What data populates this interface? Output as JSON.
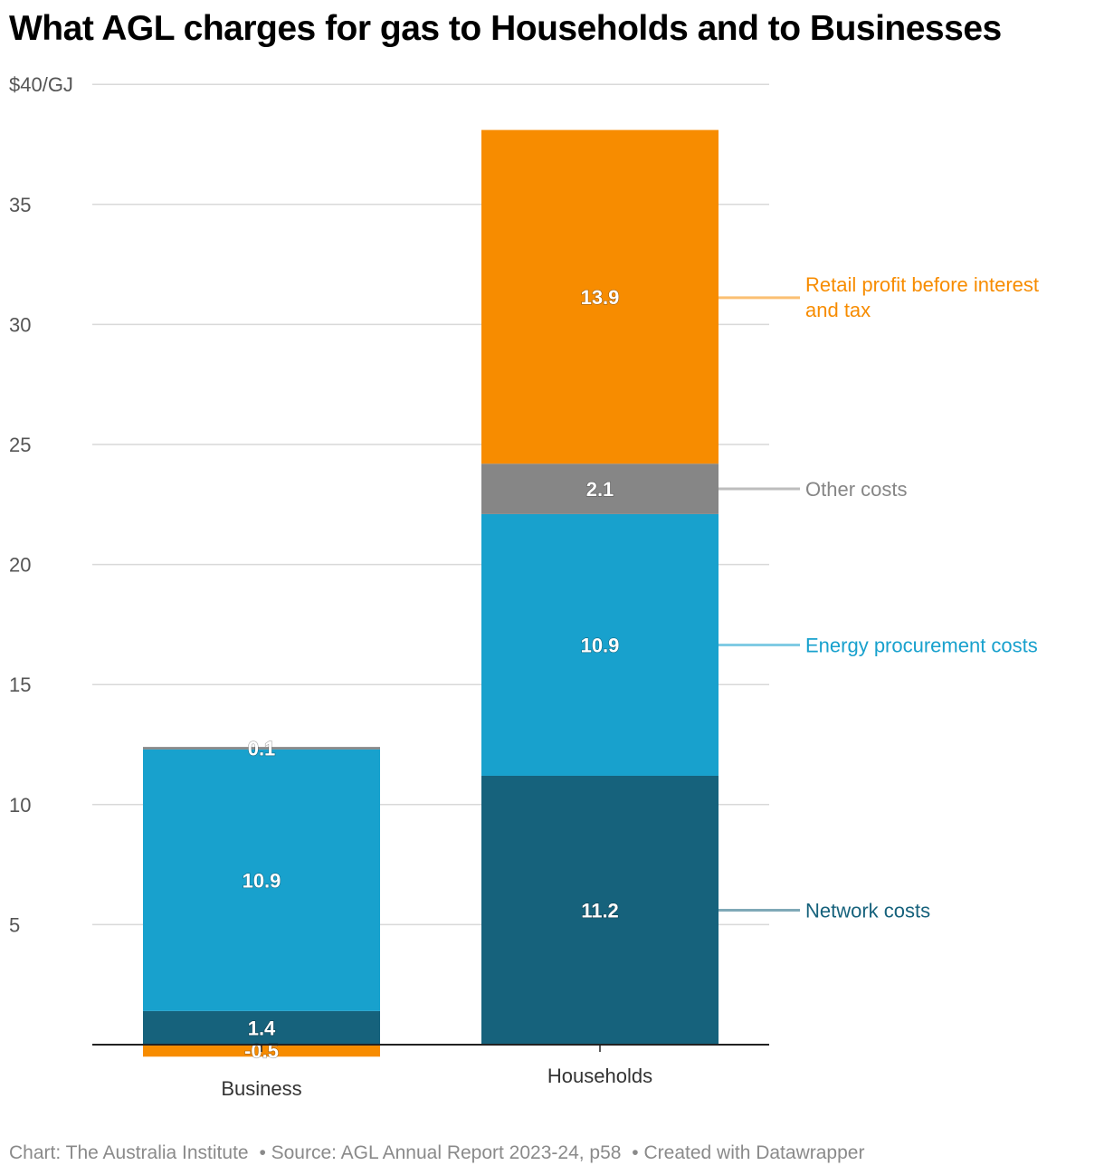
{
  "title": "What AGL charges for gas to Households and to Businesses",
  "footer": {
    "credit": "Chart: The Australia Institute",
    "source": "• Source: AGL Annual Report 2023-24, p58",
    "tool": "• Created with Datawrapper"
  },
  "chart_data": {
    "type": "bar",
    "stacked": true,
    "categories": [
      "Business",
      "Households"
    ],
    "y_axis": {
      "min": 0,
      "max": 40,
      "ticks": [
        0,
        5,
        10,
        15,
        20,
        25,
        30,
        35,
        40
      ],
      "tick_labels": [
        "",
        "5",
        "10",
        "15",
        "20",
        "25",
        "30",
        "35",
        "$40/GJ"
      ]
    },
    "grid": true,
    "series": [
      {
        "name": "Network costs",
        "color": "#16627c",
        "values": [
          1.4,
          11.2
        ],
        "labels": [
          "1.4",
          "11.2"
        ]
      },
      {
        "name": "Energy procurement costs",
        "color": "#18a1cd",
        "values": [
          10.9,
          10.9
        ],
        "labels": [
          "10.9",
          "10.9"
        ]
      },
      {
        "name": "Other costs",
        "color": "#868686",
        "values": [
          0.1,
          2.1
        ],
        "labels": [
          "0.1",
          "2.1"
        ]
      },
      {
        "name": "Retail profit before interest and tax",
        "color": "#f78c00",
        "values": [
          -0.5,
          13.9
        ],
        "labels": [
          "-0.5",
          "13.9"
        ]
      }
    ],
    "legend_placement": "right, inline labels",
    "legend_lines": {
      "Retail profit before interest and tax": [
        "Retail profit before interest",
        "and tax"
      ],
      "Other costs": [
        "Other costs"
      ],
      "Energy procurement costs": [
        "Energy procurement costs"
      ],
      "Network costs": [
        "Network costs"
      ]
    }
  }
}
